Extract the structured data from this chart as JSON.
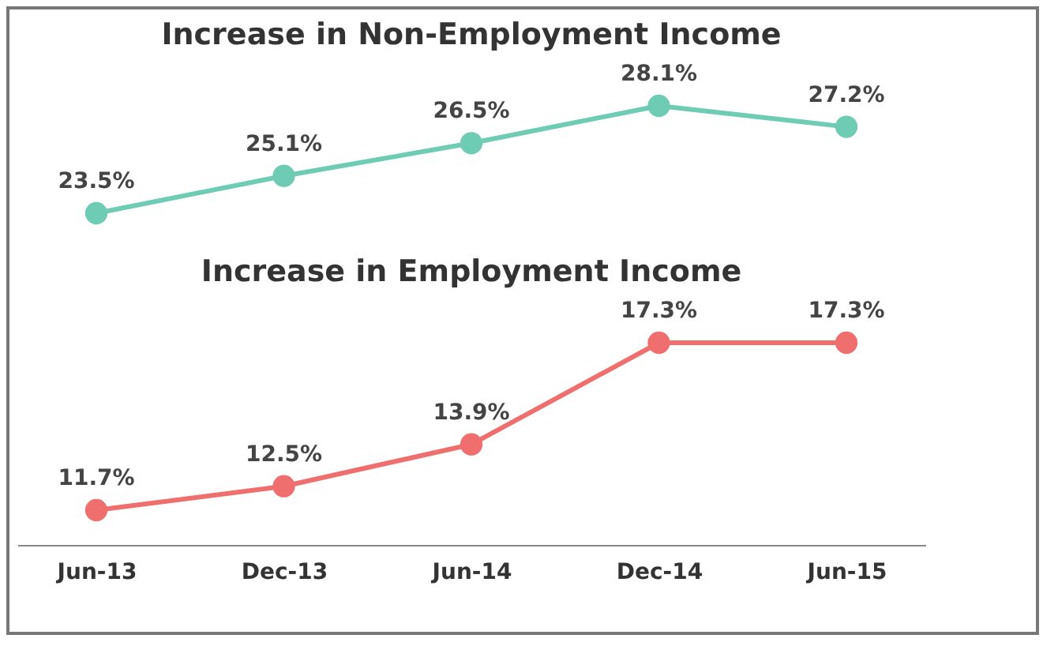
{
  "chart_data": [
    {
      "type": "line",
      "title": "Increase in Non-Employment Income",
      "series": [
        {
          "color": "#6ecbb4",
          "values": [
            23.5,
            25.1,
            26.5,
            28.1,
            27.2
          ],
          "value_labels": [
            "23.5%",
            "25.1%",
            "26.5%",
            "28.1%",
            "27.2%"
          ]
        }
      ],
      "marker": "circle",
      "tick_labels": false
    },
    {
      "type": "line",
      "title": "Increase in Employment Income",
      "categories": [
        "Jun-13",
        "Dec-13",
        "Jun-14",
        "Dec-14",
        "Jun-15"
      ],
      "series": [
        {
          "color": "#ef6f6f",
          "values": [
            11.7,
            12.5,
            13.9,
            17.3,
            17.3
          ],
          "value_labels": [
            "11.7%",
            "12.5%",
            "13.9%",
            "17.3%",
            "17.3%"
          ]
        }
      ],
      "marker": "circle",
      "tick_labels": "x"
    }
  ]
}
